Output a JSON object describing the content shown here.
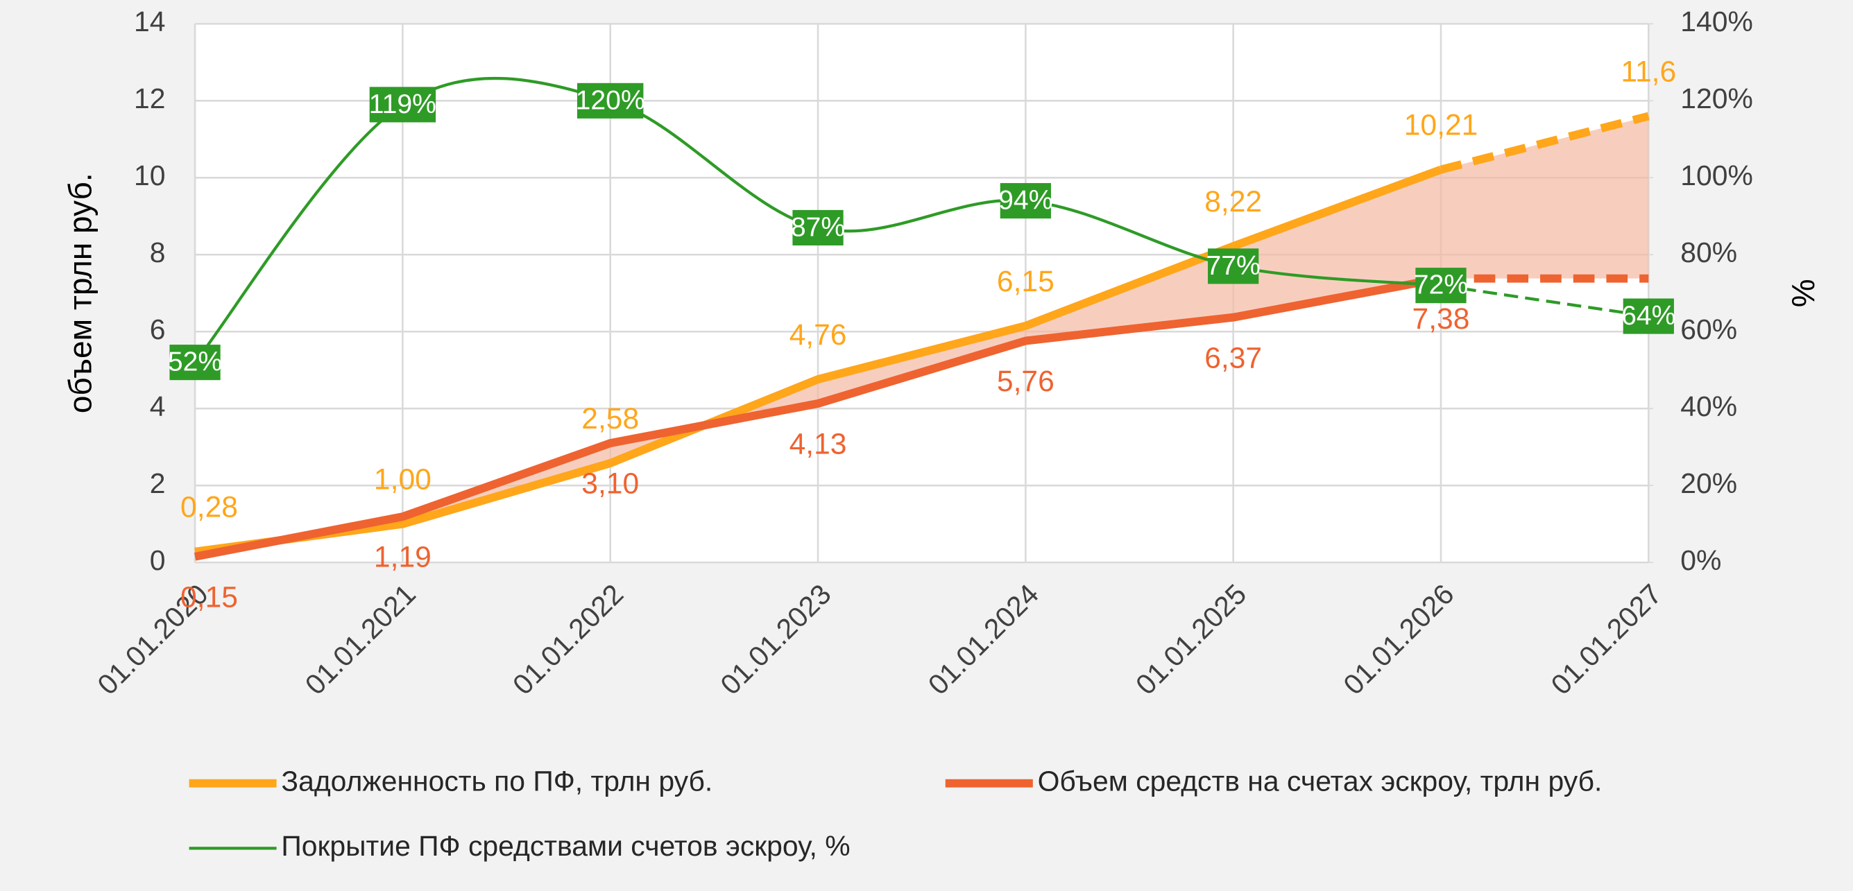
{
  "chart_data": {
    "type": "line",
    "categories": [
      "01.01.2020",
      "01.01.2021",
      "01.01.2022",
      "01.01.2023",
      "01.01.2024",
      "01.01.2025",
      "01.01.2026",
      "01.01.2027"
    ],
    "ylabel": "объем трлн руб.",
    "y2label": "%",
    "ylim": [
      0,
      14
    ],
    "yticks": [
      0,
      2,
      4,
      6,
      8,
      10,
      12,
      14
    ],
    "y2lim": [
      0,
      140
    ],
    "y2ticks": [
      {
        "value": 0,
        "label": "0%"
      },
      {
        "value": 20,
        "label": "20%"
      },
      {
        "value": 40,
        "label": "40%"
      },
      {
        "value": 60,
        "label": "60%"
      },
      {
        "value": 80,
        "label": "80%"
      },
      {
        "value": 100,
        "label": "100%"
      },
      {
        "value": 120,
        "label": "120%"
      },
      {
        "value": 140,
        "label": "140%"
      }
    ],
    "grid": true,
    "legend": "bottom",
    "series": [
      {
        "name": "Задолженность по ПФ, трлн руб.",
        "color": "#ffa61a",
        "width": 7,
        "label_position": "above",
        "dashed_from": 6,
        "values": [
          0.28,
          1.0,
          2.58,
          4.76,
          6.15,
          8.22,
          10.21,
          11.6
        ],
        "value_labels": [
          "0,28",
          "1,00",
          "2,58",
          "4,76",
          "6,15",
          "8,22",
          "10,21",
          "11,6"
        ]
      },
      {
        "name": "Объем средств на счетах эскроу, трлн руб.",
        "color": "#ee6330",
        "width": 7,
        "label_position": "below",
        "dashed_from": 6,
        "values": [
          0.15,
          1.19,
          3.1,
          4.13,
          5.76,
          6.37,
          7.38,
          7.38
        ],
        "value_labels": [
          "0,15",
          "1,19",
          "3,10",
          "4,13",
          "5,76",
          "6,37",
          "7,38",
          null
        ]
      },
      {
        "name": "Покрытие ПФ средствами счетов эскроу, %",
        "color": "#2e9b26",
        "width": 2.5,
        "axis": "y2",
        "smooth": true,
        "label_position": "box",
        "dashed_from": 6,
        "values": [
          52,
          119,
          120,
          87,
          94,
          77,
          72,
          64
        ],
        "value_labels": [
          "52%",
          "119%",
          "120%",
          "87%",
          "94%",
          "77%",
          "72%",
          "64%"
        ]
      }
    ],
    "fill_between": {
      "series": [
        0,
        1
      ],
      "color": "#f3b9a3"
    }
  }
}
